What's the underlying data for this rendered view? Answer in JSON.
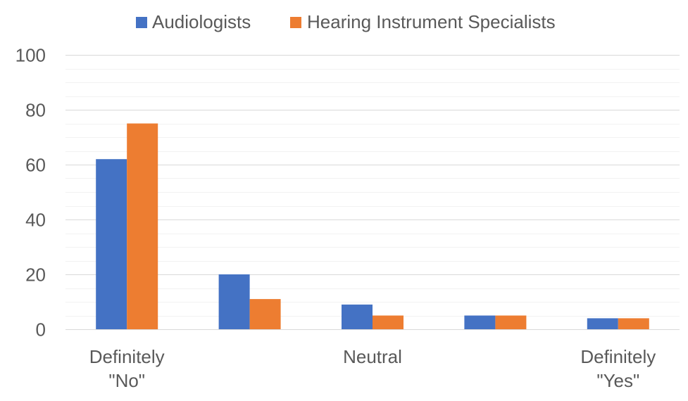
{
  "chart_data": {
    "type": "bar",
    "categories": [
      [
        "Definitely",
        "\"No\""
      ],
      [
        ""
      ],
      [
        "Neutral"
      ],
      [
        ""
      ],
      [
        "Definitely",
        "\"Yes\""
      ]
    ],
    "series": [
      {
        "name": "Audiologists",
        "color": "#4472C4",
        "values": [
          62,
          20,
          9,
          5,
          4
        ]
      },
      {
        "name": "Hearing Instrument Specialists",
        "color": "#ED7D31",
        "values": [
          75,
          11,
          5,
          5,
          4
        ]
      }
    ],
    "yticks": [
      "0",
      "20",
      "40",
      "60",
      "80",
      "100"
    ],
    "ylim": [
      0,
      100
    ],
    "grid": true,
    "legend": "top-center",
    "title": "",
    "xlabel": "",
    "ylabel": ""
  }
}
